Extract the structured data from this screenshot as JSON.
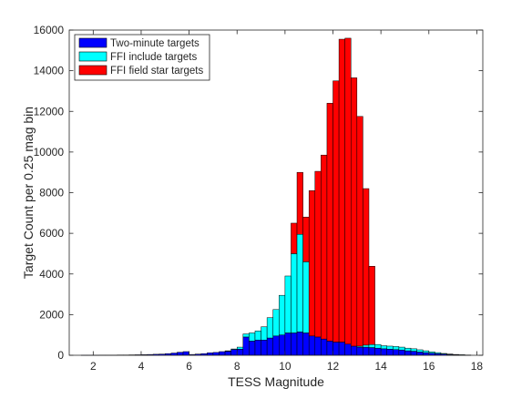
{
  "chart_data": {
    "type": "bar",
    "stacked": true,
    "xlabel": "TESS Magnitude",
    "ylabel": "Target Count per 0.25 mag bin",
    "xlim": [
      1,
      18.25
    ],
    "ylim": [
      0,
      16000
    ],
    "bin_width": 0.25,
    "x_ticks": [
      2,
      4,
      6,
      8,
      10,
      12,
      14,
      16,
      18
    ],
    "y_ticks": [
      0,
      2000,
      4000,
      6000,
      8000,
      10000,
      12000,
      14000,
      16000
    ],
    "grid": false,
    "legend_position": "top-left",
    "bin_centers": [
      1.625,
      1.875,
      2.125,
      2.375,
      2.625,
      2.875,
      3.125,
      3.375,
      3.625,
      3.875,
      4.125,
      4.375,
      4.625,
      4.875,
      5.125,
      5.375,
      5.625,
      5.875,
      6.125,
      6.375,
      6.625,
      6.875,
      7.125,
      7.375,
      7.625,
      7.875,
      8.125,
      8.375,
      8.625,
      8.875,
      9.125,
      9.375,
      9.625,
      9.875,
      10.125,
      10.375,
      10.625,
      10.875,
      11.125,
      11.375,
      11.625,
      11.875,
      12.125,
      12.375,
      12.625,
      12.875,
      13.125,
      13.375,
      13.625,
      13.875,
      14.125,
      14.375,
      14.625,
      14.875,
      15.125,
      15.375,
      15.625,
      15.875,
      16.125,
      16.375,
      16.625,
      16.875,
      17.125,
      17.375,
      17.625
    ],
    "series": [
      {
        "name": "Two-minute targets",
        "color": "#0000ff",
        "values": [
          5,
          5,
          5,
          10,
          10,
          10,
          15,
          15,
          20,
          25,
          30,
          40,
          50,
          60,
          80,
          110,
          150,
          180,
          40,
          60,
          80,
          120,
          140,
          180,
          200,
          280,
          300,
          900,
          700,
          750,
          750,
          850,
          950,
          1000,
          1100,
          1100,
          1150,
          1100,
          950,
          900,
          800,
          700,
          650,
          650,
          550,
          450,
          400,
          400,
          380,
          350,
          320,
          300,
          280,
          260,
          220,
          200,
          160,
          130,
          100,
          80,
          60,
          40,
          30,
          20,
          10
        ]
      },
      {
        "name": "FFI include targets",
        "color": "#00ffff",
        "values": [
          0,
          0,
          0,
          0,
          0,
          0,
          0,
          0,
          0,
          0,
          0,
          0,
          0,
          0,
          0,
          0,
          0,
          0,
          0,
          0,
          0,
          0,
          0,
          0,
          20,
          30,
          100,
          150,
          400,
          450,
          650,
          1000,
          1300,
          1950,
          2800,
          3900,
          4800,
          3500,
          0,
          0,
          0,
          0,
          0,
          0,
          0,
          0,
          50,
          100,
          150,
          180,
          150,
          150,
          150,
          140,
          130,
          120,
          110,
          90,
          70,
          50,
          30,
          20,
          10,
          5,
          5
        ]
      },
      {
        "name": "FFI field star targets",
        "color": "#ff0000",
        "values": [
          0,
          0,
          0,
          0,
          0,
          0,
          0,
          0,
          0,
          0,
          0,
          0,
          0,
          0,
          0,
          0,
          0,
          0,
          0,
          0,
          0,
          0,
          0,
          0,
          0,
          0,
          0,
          0,
          0,
          0,
          0,
          0,
          0,
          0,
          0,
          1500,
          3050,
          2200,
          7150,
          8150,
          9050,
          11700,
          12850,
          14900,
          15050,
          13200,
          11300,
          7700,
          3850,
          0,
          0,
          0,
          0,
          0,
          0,
          0,
          0,
          0,
          0,
          0,
          0,
          0,
          0,
          0,
          0
        ]
      }
    ]
  }
}
